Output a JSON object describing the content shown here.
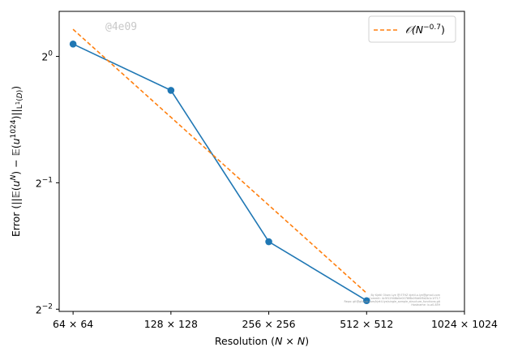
{
  "chart_data": {
    "type": "line",
    "title": "",
    "xlabel": "Resolution (N × N)",
    "ylabel": "Error (||E(u^N) − E(u^1024)||L1(D))",
    "x_scale": "log2",
    "y_scale": "log2",
    "x_tick_values": [
      64,
      128,
      256,
      512,
      1024
    ],
    "x_tick_labels": [
      "64 × 64",
      "128 × 128",
      "256 × 256",
      "512 × 512",
      "1024 × 1024"
    ],
    "y_tick_values": [
      0.25,
      0.5,
      1.0
    ],
    "y_tick_labels": [
      {
        "base": "2",
        "exp": "−2"
      },
      {
        "base": "2",
        "exp": "−1"
      },
      {
        "base": "2",
        "exp": "0"
      }
    ],
    "xlim": [
      58,
      1024
    ],
    "ylim": [
      0.247,
      1.28
    ],
    "series": [
      {
        "kind": "measured",
        "style": "solid",
        "marker": "circle",
        "color": "#1f77b4",
        "x": [
          64,
          128,
          256,
          512
        ],
        "y": [
          1.07,
          0.83,
          0.362,
          0.262
        ]
      },
      {
        "kind": "reference",
        "name": "O(N^−0.7)",
        "style": "dashed",
        "color": "#ff7f0e",
        "x": [
          64,
          512
        ],
        "y": [
          1.16,
          0.273
        ]
      }
    ],
    "legend": {
      "placement": "top-right",
      "entries": [
        {
          "prefix": "𝒪(N",
          "exp": "−0.7",
          "suffix": ")"
        }
      ]
    },
    "grid": false
  },
  "watermark": "@4e09",
  "credits": [
    "By Kjetil Olsen Lye @ ETHZ kjetil.o.lye@gmail.com",
    "Commit: 4c5f12948b0e0076f8b0f4d0f8d2b1c1f717",
    "Repo: git@github.com/kjetil-lye/single_sample_structure_functions.git",
    "Hostname: lx-a0-859"
  ]
}
